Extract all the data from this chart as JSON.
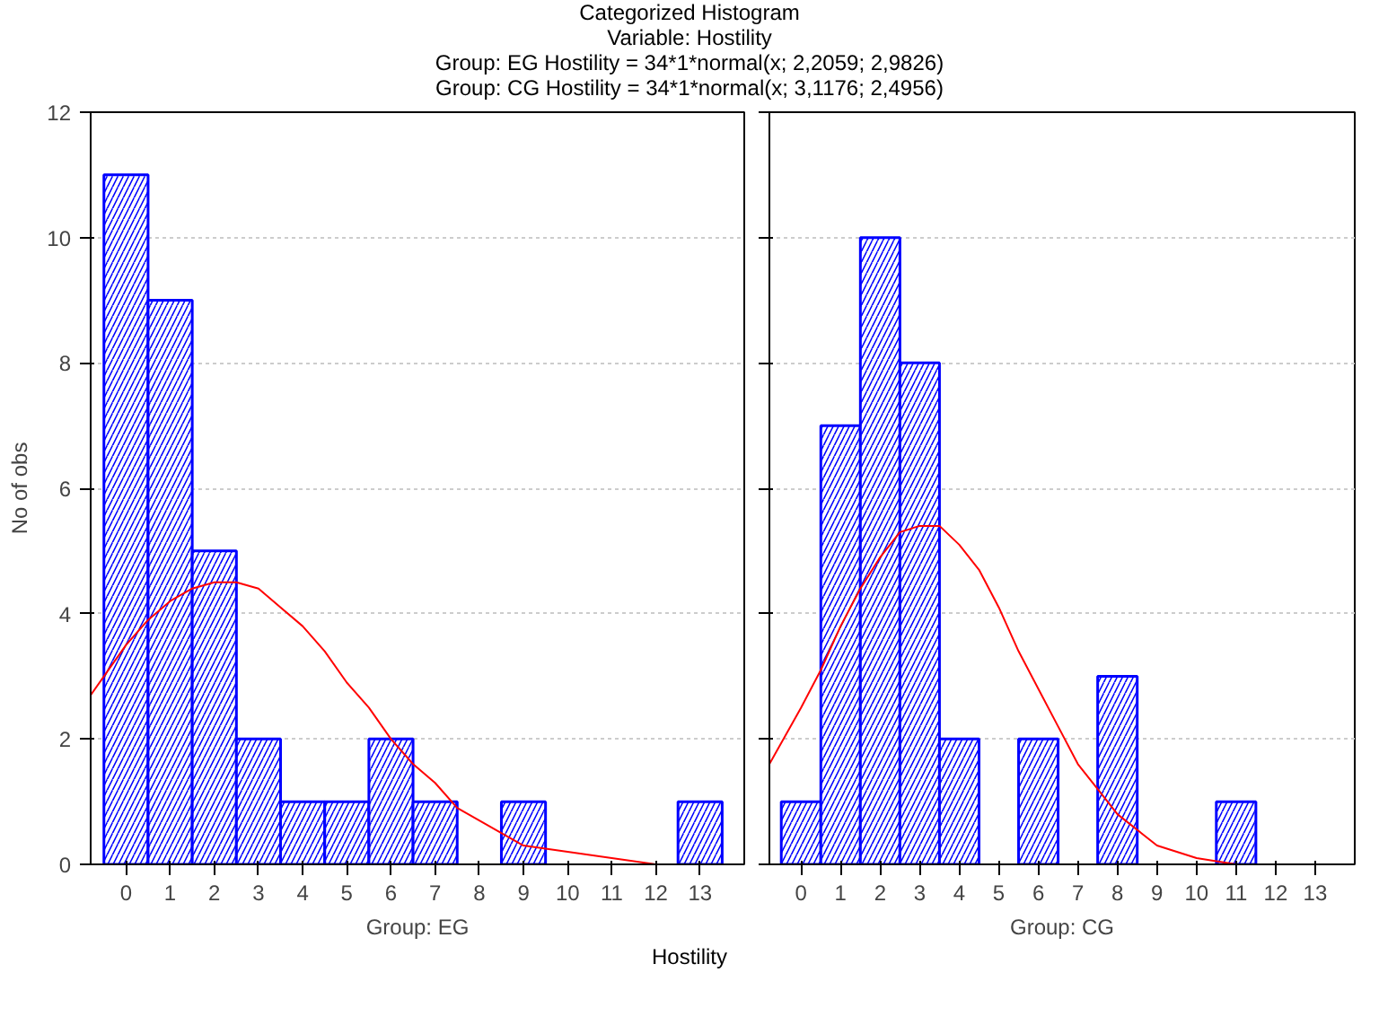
{
  "chart_data": [
    {
      "type": "histogram",
      "title": "Categorized Histogram",
      "subtitle": "Variable: Hostility",
      "annotations": [
        "Group: EG Hostility = 34*1*normal(x; 2,2059; 2,9826)",
        "Group: CG Hostility = 34*1*normal(x; 3,1176; 2,4956)"
      ],
      "xlabel": "Group: EG",
      "ylabel": "No of obs",
      "bins": [
        -0.5,
        0.5,
        1.5,
        2.5,
        3.5,
        4.5,
        5.5,
        6.5,
        7.5,
        8.5,
        9.5,
        10.5,
        11.5,
        12.5,
        13.5
      ],
      "values": [
        11,
        9,
        5,
        2,
        1,
        1,
        2,
        1,
        0,
        1,
        0,
        0,
        0,
        1
      ],
      "color": "#0000ff",
      "series": [
        {
          "type": "line",
          "color": "#ff0000",
          "x": [
            -0.8,
            0,
            0.5,
            1,
            1.5,
            2,
            2.5,
            3,
            3.5,
            4,
            4.5,
            5,
            5.5,
            6,
            6.5,
            7,
            7.5,
            8,
            9,
            10,
            11,
            12
          ],
          "values": [
            2.7,
            3.5,
            3.9,
            4.2,
            4.4,
            4.5,
            4.5,
            4.4,
            4.1,
            3.8,
            3.4,
            2.9,
            2.5,
            2.0,
            1.6,
            1.3,
            0.9,
            0.7,
            0.3,
            0.2,
            0.1,
            0.0
          ]
        }
      ],
      "xlim": [
        -0.8,
        14
      ],
      "xticks": [
        0,
        1,
        2,
        3,
        4,
        5,
        6,
        7,
        8,
        9,
        10,
        11,
        12,
        13
      ],
      "ylim": [
        0,
        12
      ],
      "yticks": [
        0,
        2,
        4,
        6,
        8,
        10,
        12
      ],
      "grid": "y"
    },
    {
      "type": "histogram",
      "annotations": [
        "Hostility"
      ],
      "xlabel": "Group: CG",
      "bins": [
        -0.5,
        0.5,
        1.5,
        2.5,
        3.5,
        4.5,
        5.5,
        6.5,
        7.5,
        8.5,
        9.5,
        10.5,
        11.5,
        12.5,
        13.5
      ],
      "values": [
        1,
        7,
        10,
        8,
        2,
        0,
        2,
        0,
        3,
        0,
        0,
        1,
        0,
        0
      ],
      "color": "#0000ff",
      "series": [
        {
          "type": "line",
          "color": "#ff0000",
          "x": [
            -0.8,
            0,
            0.5,
            1,
            1.5,
            2,
            2.5,
            3,
            3.5,
            4,
            4.5,
            5,
            5.5,
            6,
            6.5,
            7,
            7.5,
            8,
            9,
            10,
            11
          ],
          "values": [
            1.6,
            2.5,
            3.1,
            3.8,
            4.4,
            4.9,
            5.3,
            5.4,
            5.4,
            5.1,
            4.7,
            4.1,
            3.4,
            2.8,
            2.2,
            1.6,
            1.2,
            0.8,
            0.3,
            0.1,
            0.0
          ]
        }
      ],
      "xlim": [
        -0.8,
        14
      ],
      "xticks": [
        0,
        1,
        2,
        3,
        4,
        5,
        6,
        7,
        8,
        9,
        10,
        11,
        12,
        13
      ],
      "ylim": [
        0,
        12
      ],
      "yticks": [
        0,
        2,
        4,
        6,
        8,
        10,
        12
      ],
      "grid": "y",
      "tick_labels": "x"
    }
  ]
}
